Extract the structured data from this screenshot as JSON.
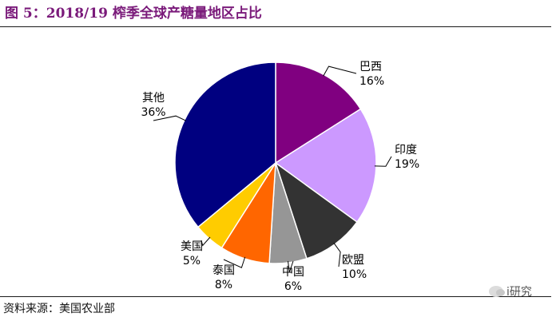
{
  "header": {
    "title": "图 5：2018/19 榨季全球产糖量地区占比"
  },
  "footer": {
    "source": "资料来源：美国农业部",
    "watermark": "i研究",
    "watermark_icon": "wechat-icon"
  },
  "chart_data": {
    "type": "pie",
    "title": "",
    "start_angle_deg": 0,
    "direction": "clockwise",
    "slices": [
      {
        "label": "巴西",
        "value": 16,
        "value_label": "16%",
        "color": "#800080"
      },
      {
        "label": "印度",
        "value": 19,
        "value_label": "19%",
        "color": "#cc99ff"
      },
      {
        "label": "欧盟",
        "value": 10,
        "value_label": "10%",
        "color": "#333333"
      },
      {
        "label": "中国",
        "value": 6,
        "value_label": "6%",
        "color": "#969696"
      },
      {
        "label": "泰国",
        "value": 8,
        "value_label": "8%",
        "color": "#ff6600"
      },
      {
        "label": "美国",
        "value": 5,
        "value_label": "5%",
        "color": "#ffcc00"
      },
      {
        "label": "其他",
        "value": 36,
        "value_label": "36%",
        "color": "#000080"
      }
    ]
  }
}
